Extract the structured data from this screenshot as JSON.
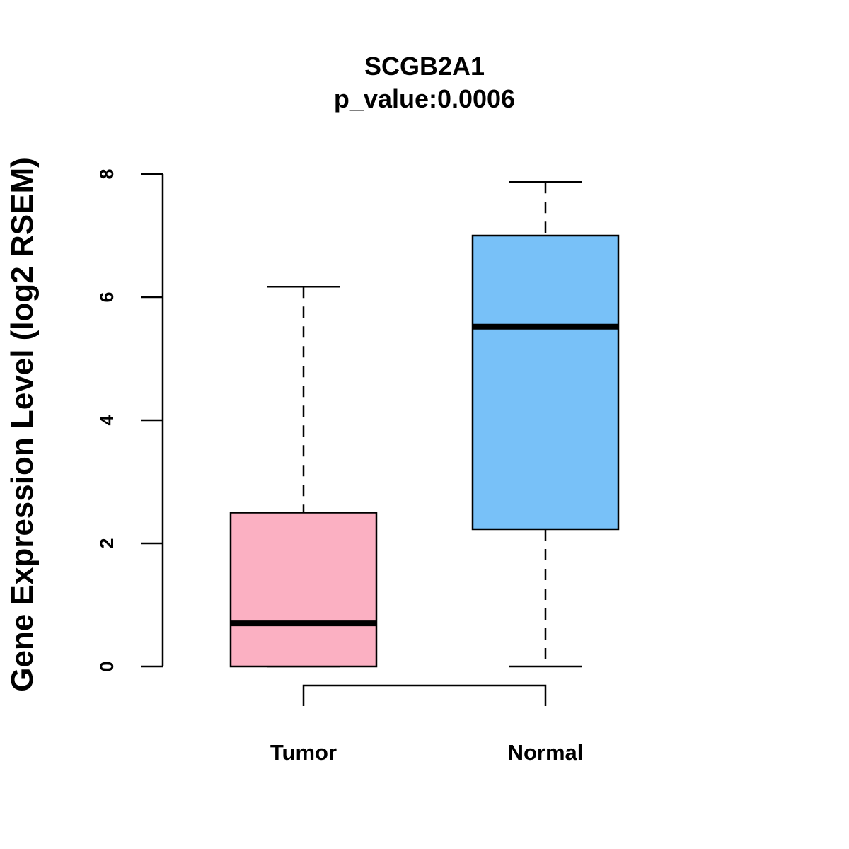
{
  "chart_data": {
    "type": "boxplot",
    "title": "SCGB2A1",
    "subtitle": "p_value:0.0006",
    "xlabel": "",
    "ylabel": "Gene Expression Level (log2 RSEM)",
    "ylim": [
      0,
      8
    ],
    "yticks": [
      0,
      2,
      4,
      6,
      8
    ],
    "categories": [
      "Tumor",
      "Normal"
    ],
    "series": [
      {
        "name": "Tumor",
        "min": 0,
        "q1": 0,
        "median": 0.7,
        "q3": 2.5,
        "max": 6.17,
        "color": "#FBB0C2"
      },
      {
        "name": "Normal",
        "min": 0,
        "q1": 2.23,
        "median": 5.52,
        "q3": 7.0,
        "max": 7.87,
        "color": "#78C1F8"
      }
    ],
    "grid": false,
    "comparison_bracket": true
  }
}
